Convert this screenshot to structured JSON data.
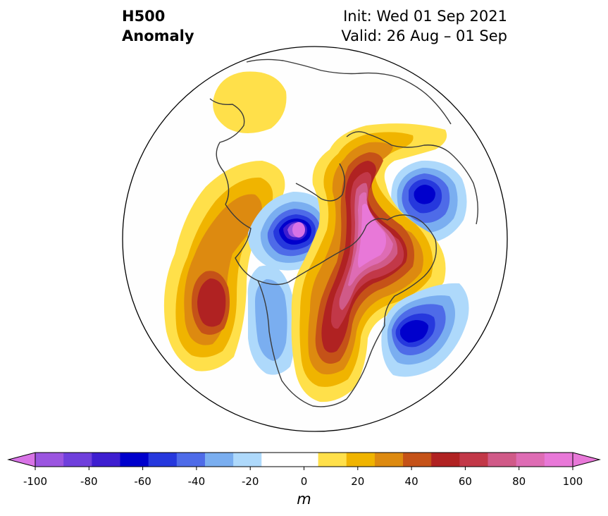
{
  "header": {
    "title_line1": "H500",
    "title_line2": "Anomaly",
    "init": "Init: Wed 01 Sep 2021",
    "valid": "Valid: 26 Aug – 01 Sep"
  },
  "colorbar": {
    "unit": "m",
    "ticks": [
      "-100",
      "-80",
      "-60",
      "-40",
      "-20",
      "0",
      "20",
      "40",
      "60",
      "80",
      "100"
    ],
    "bin_colors": [
      "#9b55e0",
      "#6f3fdc",
      "#3e1ed0",
      "#0000cc",
      "#2638dd",
      "#4e6be8",
      "#7aaef0",
      "#aed9fb",
      "#ffffff",
      "#ffffff",
      "#ffe04a",
      "#f0b400",
      "#dd8a10",
      "#c55218",
      "#b02222",
      "#c23848",
      "#d05a88",
      "#de6cb4",
      "#e878d8"
    ],
    "low_extend_color": "#d873e6",
    "high_extend_color": "#e878d8"
  },
  "map": {
    "projection": "north-polar-stereographic",
    "shading": "500 hPa geopotential height anomaly (m)",
    "anomalies": [
      {
        "region": "Europe / Scandinavia",
        "sign": "positive",
        "peak_m": 15
      },
      {
        "region": "Northeast Pacific / Gulf of Alaska",
        "sign": "positive",
        "peak_m": 55
      },
      {
        "region": "Bering Strait",
        "sign": "negative",
        "peak_m": -95
      },
      {
        "region": "Western Siberia",
        "sign": "negative",
        "peak_m": -60
      },
      {
        "region": "Greenland / Canadian Arctic",
        "sign": "positive",
        "peak_m": 100
      },
      {
        "region": "Central Canada / US Great Lakes",
        "sign": "positive",
        "peak_m": 55
      },
      {
        "region": "Western United States",
        "sign": "negative",
        "peak_m": -30
      },
      {
        "region": "North Pacific (Aleutians)",
        "sign": "negative",
        "peak_m": -55
      }
    ]
  }
}
